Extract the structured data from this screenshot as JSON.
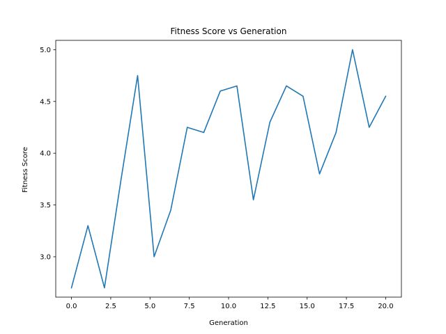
{
  "chart_data": {
    "type": "line",
    "title": "Fitness Score vs Generation",
    "xlabel": "Generation",
    "ylabel": "Fitness Score",
    "xlim": [
      -1.0,
      21.0
    ],
    "ylim": [
      2.61,
      5.09
    ],
    "xticks": [
      0.0,
      2.5,
      5.0,
      7.5,
      10.0,
      12.5,
      15.0,
      17.5,
      20.0
    ],
    "xtick_labels": [
      "0.0",
      "2.5",
      "5.0",
      "7.5",
      "10.0",
      "12.5",
      "15.0",
      "17.5",
      "20.0"
    ],
    "yticks": [
      3.0,
      3.5,
      4.0,
      4.5,
      5.0
    ],
    "ytick_labels": [
      "3.0",
      "3.5",
      "4.0",
      "4.5",
      "5.0"
    ],
    "grid": false,
    "series": [
      {
        "color": "#1f77b4",
        "x": [
          0.0,
          1.05,
          2.1,
          3.16,
          4.21,
          5.26,
          6.32,
          7.37,
          8.42,
          9.47,
          10.53,
          11.58,
          12.63,
          13.68,
          14.74,
          15.79,
          16.84,
          17.89,
          18.95,
          20.0
        ],
        "y": [
          2.7,
          3.3,
          2.7,
          3.75,
          4.75,
          3.0,
          3.45,
          4.25,
          4.2,
          4.6,
          4.65,
          3.55,
          4.3,
          4.65,
          4.55,
          3.8,
          4.2,
          5.0,
          4.25,
          4.55
        ]
      }
    ]
  }
}
